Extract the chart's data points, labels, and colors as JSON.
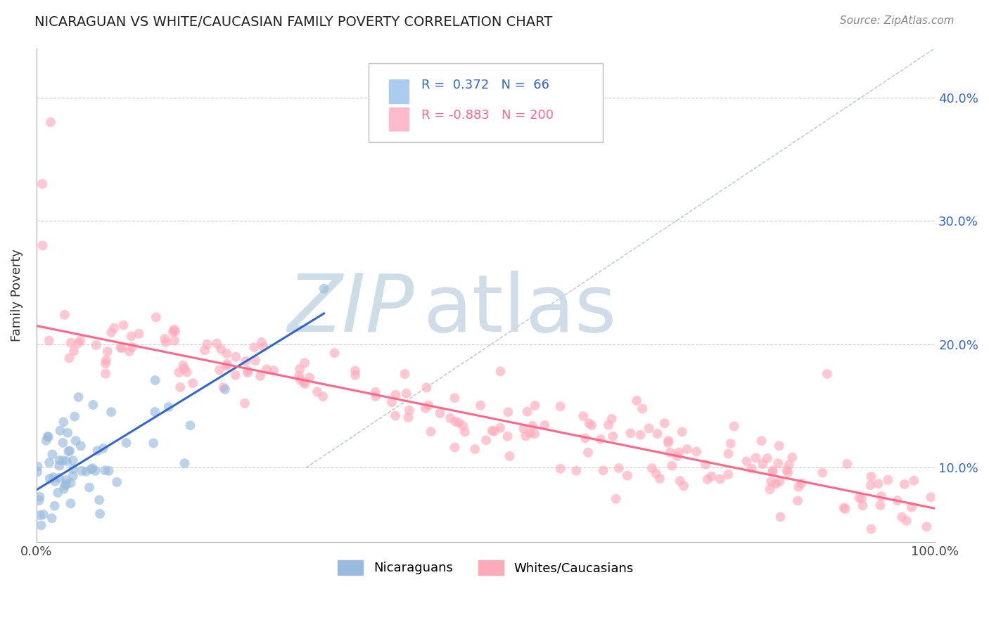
{
  "title": "NICARAGUAN VS WHITE/CAUCASIAN FAMILY POVERTY CORRELATION CHART",
  "source": "Source: ZipAtlas.com",
  "ylabel": "Family Poverty",
  "ytick_labels": [
    "10.0%",
    "20.0%",
    "30.0%",
    "40.0%"
  ],
  "ytick_values": [
    0.1,
    0.2,
    0.3,
    0.4
  ],
  "blue_color": "#99BBDD",
  "pink_color": "#FFAABB",
  "blue_line_color": "#3366CC",
  "pink_line_color": "#FF6688",
  "grid_color": "#CCCCCC",
  "n_blue": 66,
  "n_pink": 200,
  "xmin": 0.0,
  "xmax": 1.0,
  "ymin": 0.04,
  "ymax": 0.44
}
